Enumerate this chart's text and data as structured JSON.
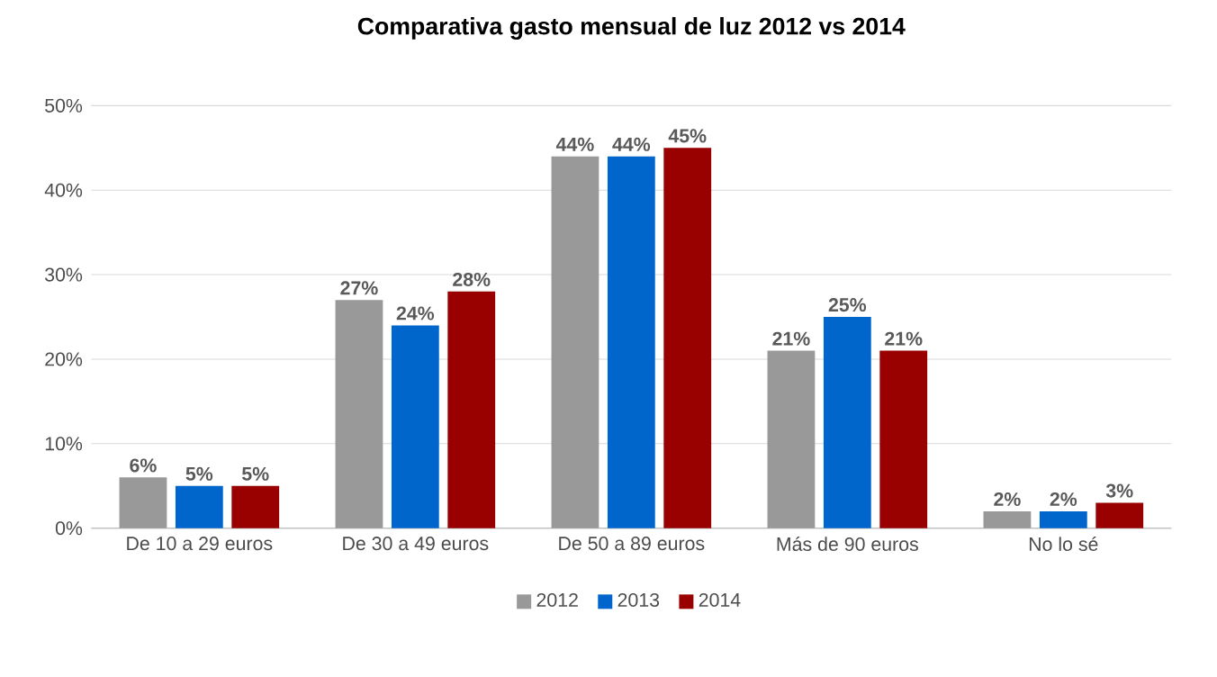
{
  "chart_data": {
    "type": "bar",
    "title": "Comparativa gasto mensual de luz 2012 vs 2014",
    "categories": [
      "De 10 a 29 euros",
      "De 30 a 49 euros",
      "De 50 a 89 euros",
      "Más de 90 euros",
      "No lo sé"
    ],
    "series": [
      {
        "name": "2012",
        "color": "#999999",
        "values": [
          6,
          27,
          44,
          21,
          2
        ],
        "value_labels": [
          "6%",
          "27%",
          "44%",
          "21%",
          "2%"
        ]
      },
      {
        "name": "2013",
        "color": "#0066cc",
        "values": [
          5,
          24,
          44,
          25,
          2
        ],
        "value_labels": [
          "5%",
          "24%",
          "44%",
          "25%",
          "2%"
        ]
      },
      {
        "name": "2014",
        "color": "#990000",
        "values": [
          5,
          28,
          45,
          21,
          3
        ],
        "value_labels": [
          "5%",
          "28%",
          "45%",
          "21%",
          "3%"
        ]
      }
    ],
    "ylim": [
      0,
      50
    ],
    "yticks": [
      {
        "value": 0,
        "label": "0%"
      },
      {
        "value": 10,
        "label": "10%"
      },
      {
        "value": 20,
        "label": "20%"
      },
      {
        "value": 30,
        "label": "30%"
      },
      {
        "value": 40,
        "label": "40%"
      },
      {
        "value": 50,
        "label": "50%"
      }
    ],
    "grid": "y",
    "legend": "bottom"
  }
}
